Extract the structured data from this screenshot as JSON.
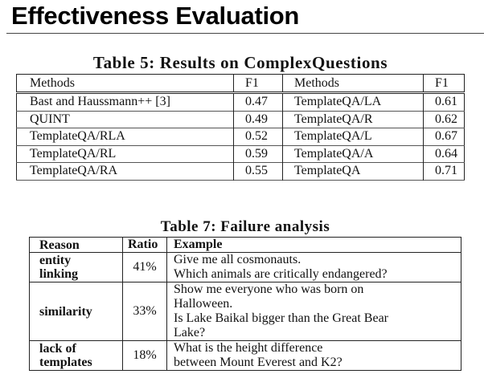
{
  "slide": {
    "title": "Effectiveness Evaluation"
  },
  "table5": {
    "caption": "Table 5: Results on ComplexQuestions",
    "headers": [
      "Methods",
      "F1",
      "Methods",
      "F1"
    ],
    "rows": [
      [
        "Bast and Haussmann++ [3]",
        "0.47",
        "TemplateQA/LA",
        "0.61"
      ],
      [
        "QUINT",
        "0.49",
        "TemplateQA/R",
        "0.62"
      ],
      [
        "TemplateQA/RLA",
        "0.52",
        "TemplateQA/L",
        "0.67"
      ],
      [
        "TemplateQA/RL",
        "0.59",
        "TemplateQA/A",
        "0.64"
      ],
      [
        "TemplateQA/RA",
        "0.55",
        "TemplateQA",
        "0.71"
      ]
    ]
  },
  "table7": {
    "caption": "Table 7: Failure analysis",
    "headers": [
      "Reason",
      "Ratio",
      "Example"
    ],
    "rows": [
      {
        "reason": [
          "entity",
          "linking"
        ],
        "ratio": "41%",
        "examples": [
          "Give me all cosmonauts.",
          "Which animals are critically endangered?"
        ]
      },
      {
        "reason": [
          "similarity"
        ],
        "ratio": "33%",
        "examples": [
          "Show me everyone who was born on",
          "Halloween.",
          "Is Lake Baikal bigger than the Great Bear",
          "Lake?"
        ]
      },
      {
        "reason": [
          "lack of",
          "templates"
        ],
        "ratio": "18%",
        "examples": [
          "What is the height difference",
          "between Mount Everest and K2?"
        ]
      }
    ]
  }
}
